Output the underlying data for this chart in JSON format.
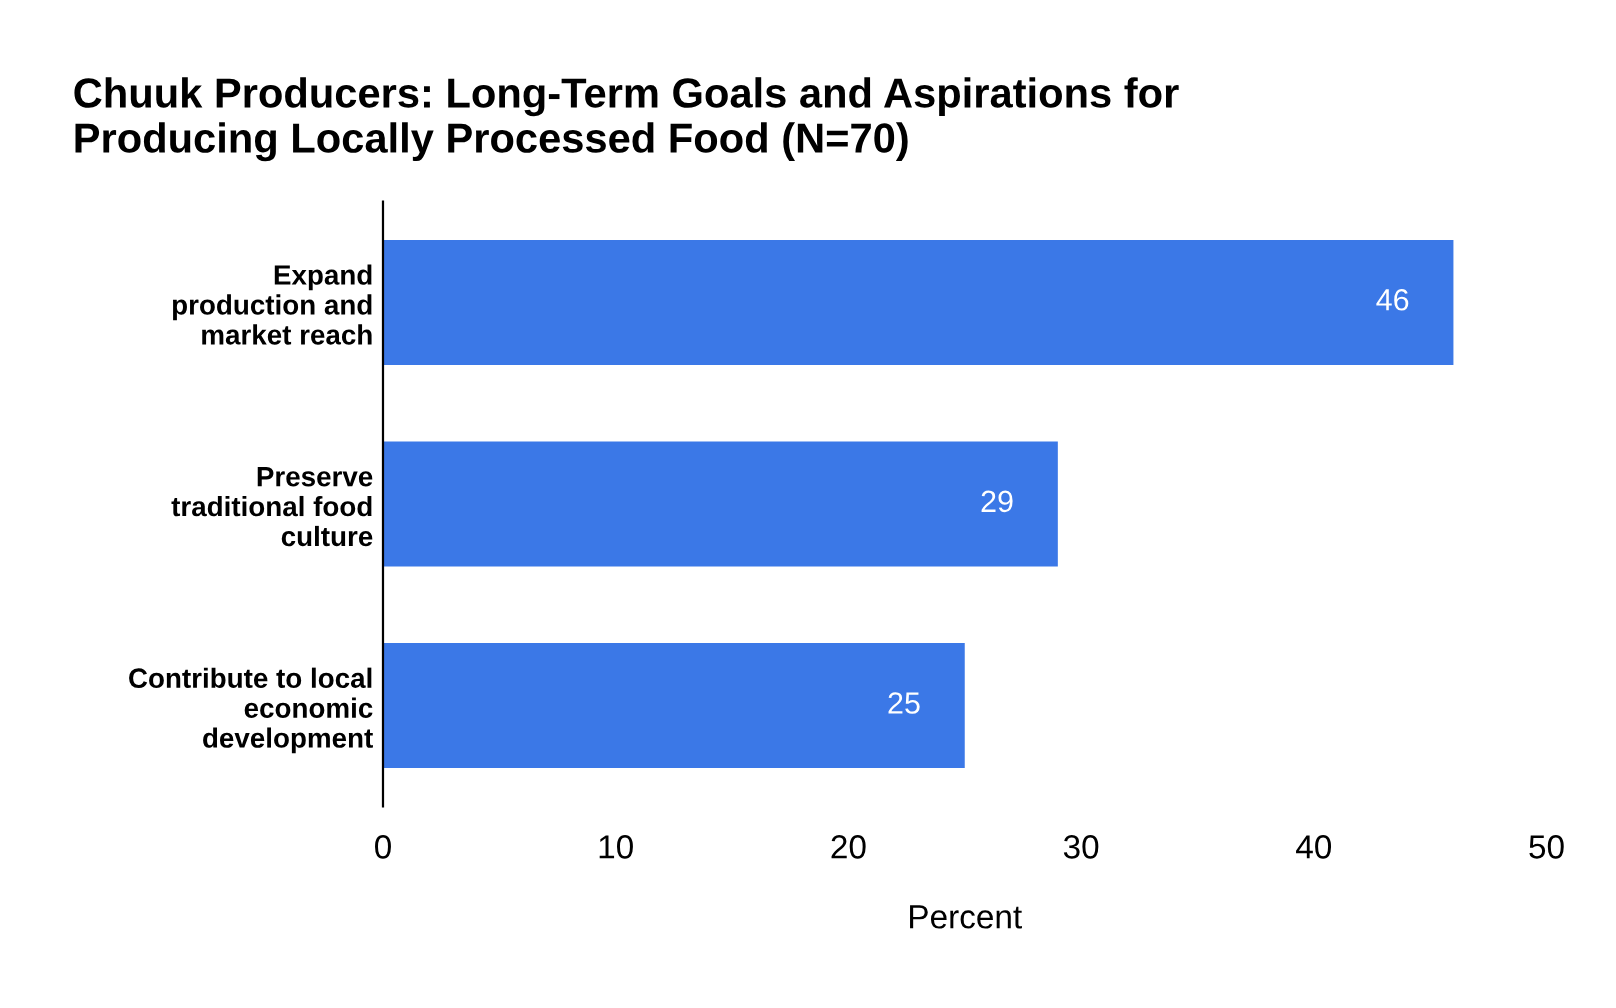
{
  "chart_data": {
    "type": "bar",
    "orientation": "horizontal",
    "title": "Chuuk Producers: Long-Term Goals and Aspirations for\nProducing Locally Processed Food (N=70)",
    "categories": [
      "Expand\nproduction and\nmarket reach",
      "Preserve\ntraditional food\nculture",
      "Contribute to local\neconomic\ndevelopment"
    ],
    "values": [
      46,
      29,
      25
    ],
    "color": "#3b78e7",
    "data_labels": true,
    "xlabel": "Percent",
    "xlim": [
      0,
      50
    ],
    "xticks": [
      0,
      10,
      20,
      30,
      40,
      50
    ],
    "grid": false
  }
}
